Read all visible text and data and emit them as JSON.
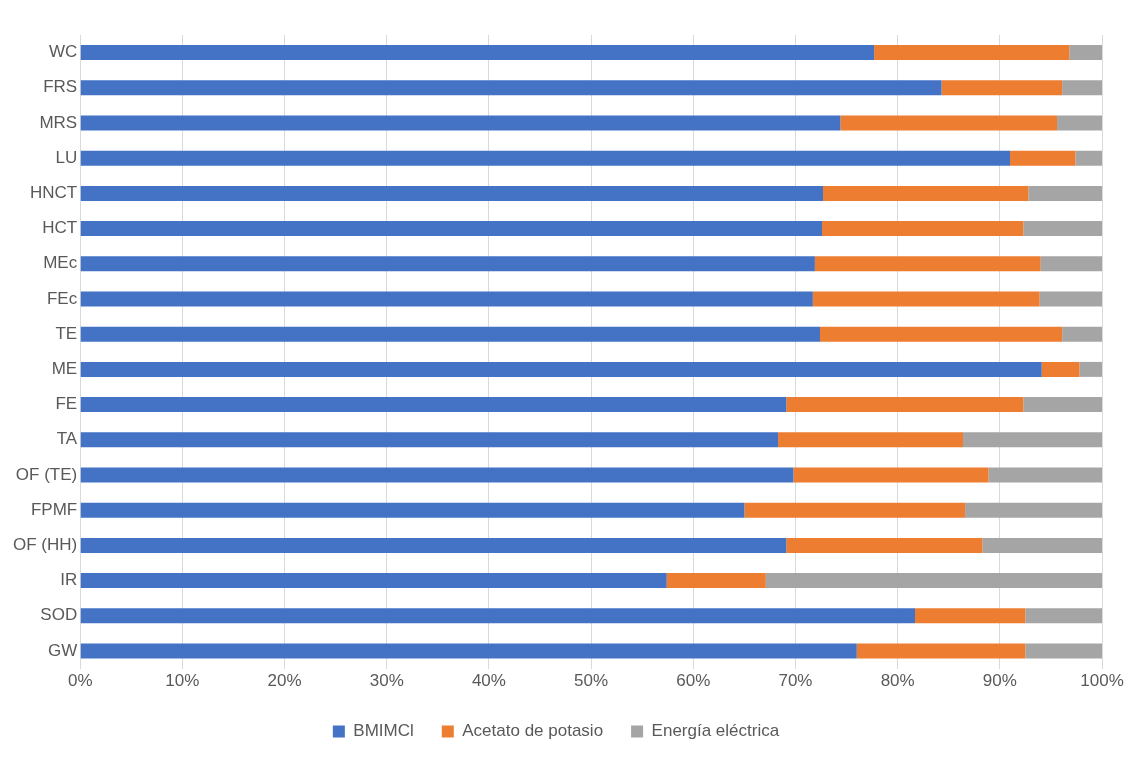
{
  "chart_data": {
    "type": "bar",
    "orientation": "horizontal",
    "stacked": true,
    "categories": [
      "WC",
      "FRS",
      "MRS",
      "LU",
      "HNCT",
      "HCT",
      "MEc",
      "FEc",
      "TE",
      "ME",
      "FE",
      "TA",
      "OF (TE)",
      "FPMF",
      "OF (HH)",
      "IR",
      "SOD",
      "GW"
    ],
    "series": [
      {
        "name": "BMIMCl",
        "color": "#4472c4",
        "values": [
          77.7,
          84.3,
          74.4,
          91.0,
          72.7,
          72.6,
          71.9,
          71.7,
          72.4,
          94.1,
          69.1,
          68.3,
          69.8,
          65.0,
          69.1,
          57.4,
          81.7,
          76.0
        ]
      },
      {
        "name": "Acetato de potasio",
        "color": "#ed7d31",
        "values": [
          19.1,
          11.8,
          21.2,
          6.4,
          20.1,
          19.7,
          22.1,
          22.2,
          23.7,
          3.7,
          23.2,
          18.1,
          19.1,
          21.6,
          19.2,
          9.7,
          10.8,
          16.5
        ]
      },
      {
        "name": "Energía eléctrica",
        "color": "#a5a5a5",
        "values": [
          3.2,
          3.9,
          4.4,
          2.6,
          7.2,
          7.7,
          6.0,
          6.1,
          3.9,
          2.2,
          7.7,
          13.6,
          11.1,
          13.4,
          11.7,
          32.9,
          7.5,
          7.5
        ]
      }
    ],
    "xlim": [
      0,
      100
    ],
    "xticks": [
      {
        "value": 0,
        "label": "0%"
      },
      {
        "value": 10,
        "label": "10%"
      },
      {
        "value": 20,
        "label": "20%"
      },
      {
        "value": 30,
        "label": "30%"
      },
      {
        "value": 40,
        "label": "40%"
      },
      {
        "value": 50,
        "label": "50%"
      },
      {
        "value": 60,
        "label": "60%"
      },
      {
        "value": 70,
        "label": "70%"
      },
      {
        "value": 80,
        "label": "80%"
      },
      {
        "value": 90,
        "label": "90%"
      },
      {
        "value": 100,
        "label": "100%"
      }
    ],
    "grid": "x",
    "legend": "bottom"
  }
}
